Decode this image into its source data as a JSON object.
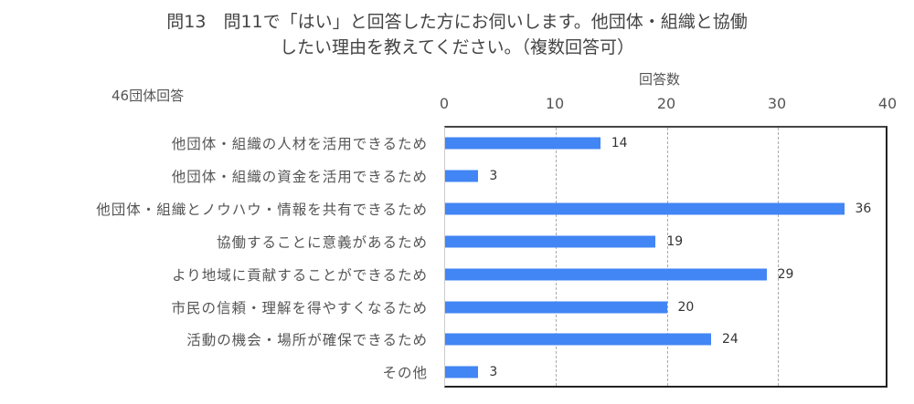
{
  "header": {
    "title_line1": "問13　問11で「はい」と回答した方にお伺いします。他団体・組織と協働",
    "title_line2": "したい理由を教えてください。（複数回答可）",
    "respondents_note": "46団体回答"
  },
  "axis": {
    "xlabel": "回答数",
    "ticks": [
      "0",
      "10",
      "20",
      "30",
      "40"
    ]
  },
  "colors": {
    "bar": "#4285f4"
  },
  "chart_data": {
    "type": "bar",
    "orientation": "horizontal",
    "title": "問13　問11で「はい」と回答した方にお伺いします。他団体・組織と協働したい理由を教えてください。（複数回答可）",
    "subtitle": "46団体回答",
    "xlabel": "回答数",
    "ylabel": "",
    "xlim": [
      0,
      40
    ],
    "xticks": [
      0,
      10,
      20,
      30,
      40
    ],
    "grid": "vertical dashed",
    "legend": null,
    "categories": [
      "他団体・組織の人材を活用できるため",
      "他団体・組織の資金を活用できるため",
      "他団体・組織とノウハウ・情報を共有できるため",
      "協働することに意義があるため",
      "より地域に貢献することができるため",
      "市民の信頼・理解を得やすくなるため",
      "活動の機会・場所が確保できるため",
      "その他"
    ],
    "values": [
      14,
      3,
      36,
      19,
      29,
      20,
      24,
      3
    ]
  }
}
